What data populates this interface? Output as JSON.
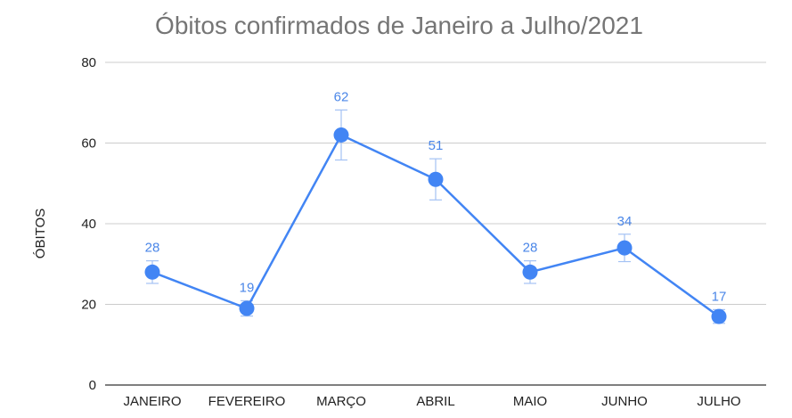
{
  "chart_data": {
    "type": "line",
    "title": "Óbitos confirmados de Janeiro a Julho/2021",
    "xlabel": "",
    "ylabel": "ÓBITOS",
    "categories": [
      "JANEIRO",
      "FEVEREIRO",
      "MARÇO",
      "ABRIL",
      "MAIO",
      "JUNHO",
      "JULHO"
    ],
    "series": [
      {
        "values": [
          28,
          19,
          62,
          51,
          28,
          34,
          17
        ]
      }
    ],
    "data_labels": [
      "28",
      "19",
      "62",
      "51",
      "28",
      "34",
      "17"
    ],
    "error_bars_percent": 10,
    "ylim": [
      0,
      80
    ],
    "yticks": [
      0,
      20,
      40,
      60,
      80
    ],
    "ytick_labels": [
      "0",
      "20",
      "40",
      "60",
      "80"
    ],
    "grid": true,
    "legend": "none",
    "colors": {
      "series": "#4285f4",
      "data_label": "#4a86e8",
      "error_bar": "#a4c2f4",
      "grid": "#cccccc",
      "axis": "#333333",
      "title": "#757575"
    }
  }
}
